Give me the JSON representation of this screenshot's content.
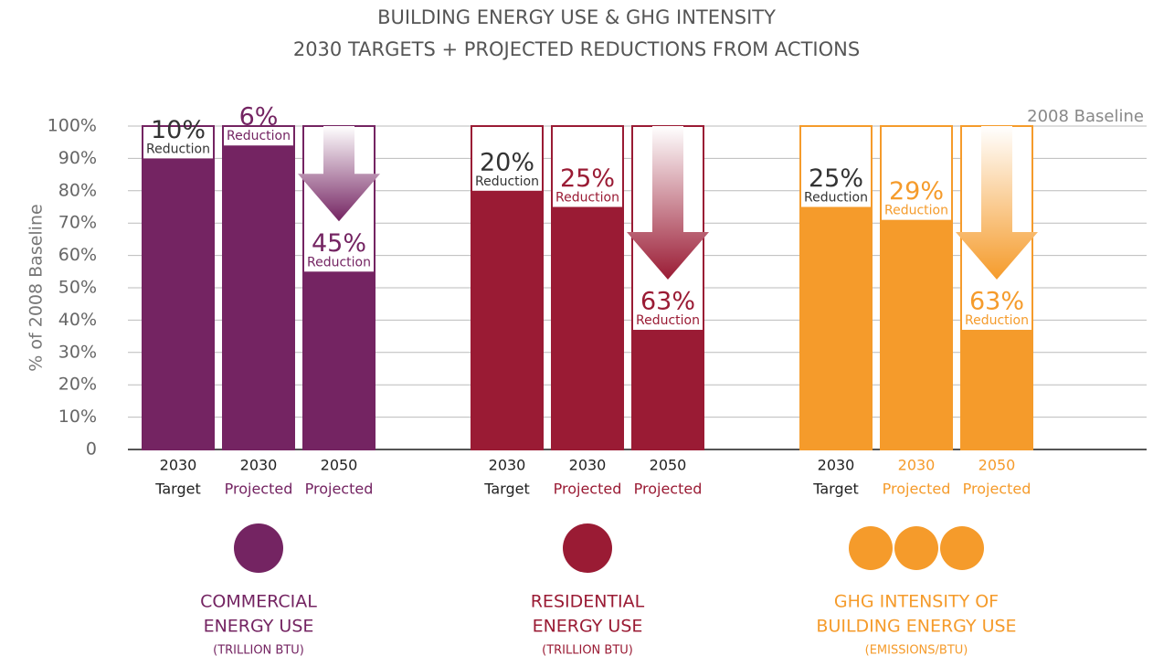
{
  "chart_data": {
    "type": "bar",
    "title": [
      "BUILDING ENERGY USE & GHG INTENSITY",
      "2030 TARGETS + PROJECTED REDUCTIONS FROM ACTIONS"
    ],
    "y_label": "% of 2008 Baseline",
    "baseline_label": "2008 Baseline",
    "ylim": [
      0,
      100
    ],
    "yticks": [
      0,
      {
        "value": 10,
        "label": "10%"
      },
      {
        "value": 20,
        "label": "20%"
      },
      {
        "value": 30,
        "label": "30%"
      },
      {
        "value": 40,
        "label": "40%"
      },
      {
        "value": 50,
        "label": "50%"
      },
      {
        "value": 60,
        "label": "60%"
      },
      {
        "value": 70,
        "label": "70%"
      },
      {
        "value": 80,
        "label": "80%"
      },
      {
        "value": 90,
        "label": "90%"
      },
      {
        "value": 100,
        "label": "100%"
      }
    ],
    "grid": true,
    "groups": [
      {
        "name": [
          "COMMERCIAL",
          "ENERGY USE"
        ],
        "unit": "(TRILLION BTU)",
        "color": "#742462",
        "categories": [
          [
            "2030",
            "Target"
          ],
          [
            "2030",
            "Projected"
          ],
          [
            "2050",
            "Projected"
          ]
        ],
        "values": [
          90,
          94,
          55
        ],
        "annotations": [
          [
            "10%",
            "Reduction"
          ],
          [
            "6%",
            "Reduction"
          ],
          [
            "45%",
            "Reduction"
          ]
        ]
      },
      {
        "name": [
          "RESIDENTIAL",
          "ENERGY USE"
        ],
        "unit": "(TRILLION BTU)",
        "color": "#9a1b34",
        "categories": [
          [
            "2030",
            "Target"
          ],
          [
            "2030",
            "Projected"
          ],
          [
            "2050",
            "Projected"
          ]
        ],
        "values": [
          80,
          75,
          37
        ],
        "annotations": [
          [
            "20%",
            "Reduction"
          ],
          [
            "25%",
            "Reduction"
          ],
          [
            "63%",
            "Reduction"
          ]
        ]
      },
      {
        "name": [
          "GHG INTENSITY OF",
          "BUILDING ENERGY USE"
        ],
        "unit": "(EMISSIONS/BTU)",
        "color": "#f59b2b",
        "categories": [
          [
            "2030",
            "Target"
          ],
          [
            "2030",
            "Projected"
          ],
          [
            "2050",
            "Projected"
          ]
        ],
        "values": [
          75,
          71,
          37
        ],
        "annotations": [
          [
            "25%",
            "Reduction"
          ],
          [
            "29%",
            "Reduction"
          ],
          [
            "63%",
            "Reduction"
          ]
        ]
      }
    ]
  }
}
